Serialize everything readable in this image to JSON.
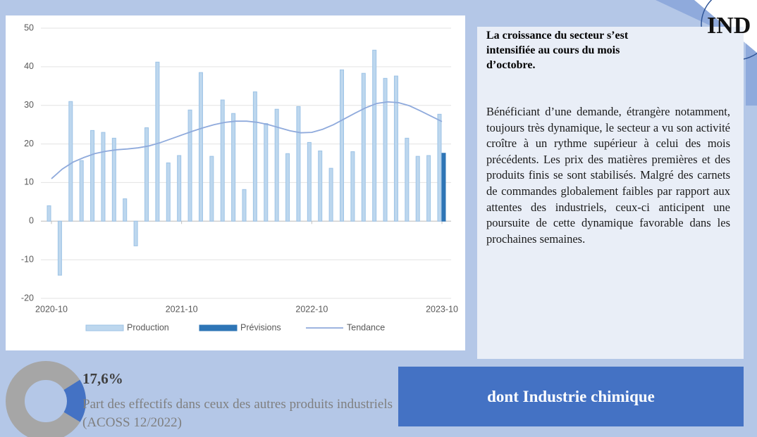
{
  "header_tag": "IND",
  "chart_data": {
    "type": "bar",
    "categories": [
      "2020-10",
      null,
      null,
      null,
      null,
      null,
      null,
      null,
      null,
      null,
      null,
      null,
      "2021-10",
      null,
      null,
      null,
      null,
      null,
      null,
      null,
      null,
      null,
      null,
      null,
      "2022-10",
      null,
      null,
      null,
      null,
      null,
      null,
      null,
      null,
      null,
      null,
      null,
      "2023-10"
    ],
    "series": [
      {
        "name": "Production",
        "color": "#bdd7ee",
        "values": [
          4,
          -14,
          31,
          15.7,
          23.5,
          23,
          21.5,
          5.8,
          -6.4,
          24.2,
          41.2,
          15.1,
          17,
          28.8,
          38.5,
          16.8,
          31.4,
          27.9,
          8.2,
          33.5,
          25.3,
          29,
          17.5,
          29.7,
          20.4,
          18.2,
          13.7,
          39.2,
          18,
          38.3,
          44.3,
          37,
          37.6,
          21.5,
          16.8,
          17,
          27.7
        ]
      },
      {
        "name": "Prévisions",
        "color": "#2e75b6",
        "values": [
          null,
          null,
          null,
          null,
          null,
          null,
          null,
          null,
          null,
          null,
          null,
          null,
          null,
          null,
          null,
          null,
          null,
          null,
          null,
          null,
          null,
          null,
          null,
          null,
          null,
          null,
          null,
          null,
          null,
          null,
          null,
          null,
          null,
          null,
          null,
          null,
          17.6
        ]
      },
      {
        "name": "Tendance",
        "type": "line",
        "color": "#8faadc",
        "values": [
          11,
          13.5,
          15.3,
          16.5,
          17.5,
          18.1,
          18.5,
          18.7,
          19,
          19.5,
          20.3,
          21.3,
          22.3,
          23.3,
          24.2,
          25,
          25.6,
          25.9,
          25.9,
          25.6,
          25,
          24.2,
          23.4,
          22.9,
          23,
          23.8,
          25,
          26.5,
          28,
          29.4,
          30.5,
          30.9,
          30.7,
          29.9,
          28.6,
          27.2,
          25.8
        ]
      }
    ],
    "ylim": [
      -20,
      50
    ],
    "yticks": [
      -20,
      -10,
      0,
      10,
      20,
      30,
      40,
      50
    ],
    "grid": true,
    "legend": "bottom"
  },
  "commentary": {
    "title": "La croissance du secteur s’est intensifiée au cours du mois d’octobre.",
    "body": "Bénéficiant d’une demande, étrangère notamment, toujours très dynamique, le secteur a vu son activité croître à un rythme supérieur à celui des mois précédents. Les prix des matières premières et des produits finis se sont stabilisés. Malgré des carnets de commandes globalement faibles par rapport aux attentes des industriels, ceux-ci anticipent une poursuite de cette dynamique favorable dans les prochaines semaines."
  },
  "share": {
    "value": 17.6,
    "label": "17,6%"
  },
  "share_text": "Part des effectifs dans ceux des autres produits industriels (ACOSS 12/2022)",
  "banner": "dont Industrie chimique"
}
